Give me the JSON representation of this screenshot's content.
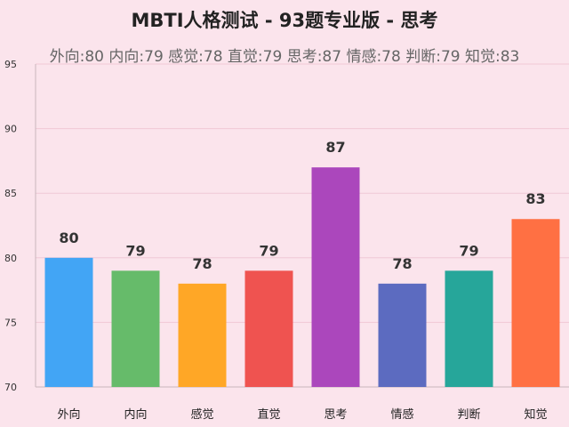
{
  "title": "MBTI人格测试 - 93题专业版 - 思考",
  "subtitle": "外向:80 内向:79 感觉:78 直觉:79 思考:87 情感:78 判断:79 知觉:83",
  "chart_data": {
    "type": "bar",
    "categories": [
      "外向",
      "内向",
      "感觉",
      "直觉",
      "思考",
      "情感",
      "判断",
      "知觉"
    ],
    "values": [
      80,
      79,
      78,
      79,
      87,
      78,
      79,
      83
    ],
    "colors": [
      "#42a5f5",
      "#66bb6a",
      "#ffa726",
      "#ef5350",
      "#ab47bc",
      "#5c6bc0",
      "#26a69a",
      "#ff7043"
    ],
    "ylim": [
      70,
      95
    ],
    "yticks": [
      70,
      75,
      80,
      85,
      90,
      95
    ],
    "grid": true,
    "data_labels": true
  }
}
